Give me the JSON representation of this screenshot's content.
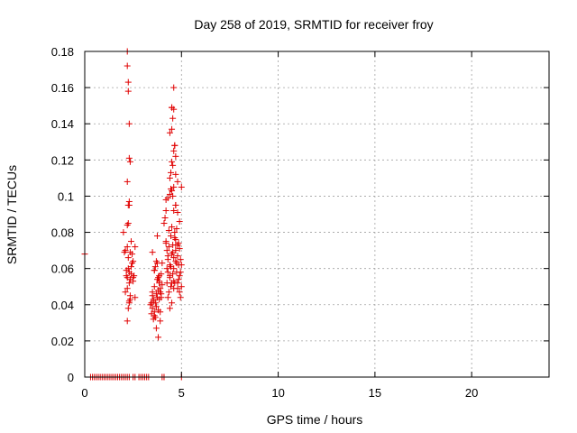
{
  "chart_data": {
    "type": "scatter",
    "title": "Day 258 of 2019, SRMTID for receiver froy",
    "xlabel": "GPS time / hours",
    "ylabel": "SRMTID / TECUs",
    "xlim": [
      0,
      24
    ],
    "ylim": [
      0,
      0.18
    ],
    "xticks": [
      0,
      5,
      10,
      15,
      20
    ],
    "yticks": [
      0,
      0.02,
      0.04,
      0.06,
      0.08,
      0.1,
      0.12,
      0.14,
      0.16,
      0.18
    ],
    "grid": true,
    "marker": "+",
    "color": "#e00000",
    "series": [
      {
        "x": [
          0.0,
          0.3,
          0.4,
          0.5,
          0.6,
          0.7,
          0.8,
          0.9,
          1.0,
          1.1,
          1.2,
          1.3,
          1.4,
          1.5,
          1.6,
          1.7,
          1.8,
          1.9,
          2.0,
          2.1,
          2.2,
          2.3,
          2.5,
          2.6,
          2.8,
          2.9,
          3.0,
          3.1,
          3.2,
          3.3,
          4.0,
          4.1,
          5.0,
          2.0,
          2.05,
          2.1,
          2.15,
          2.2,
          2.2,
          2.25,
          2.25,
          2.3,
          2.3,
          2.3,
          2.35,
          2.35,
          2.4,
          2.4,
          2.45,
          2.45,
          2.5,
          2.5,
          2.55,
          2.6,
          2.6,
          2.2,
          2.25,
          2.3,
          2.35,
          2.4,
          2.1,
          2.15,
          2.5,
          2.2,
          2.2,
          2.25,
          2.25,
          2.3,
          2.3,
          2.35,
          2.2,
          2.3,
          2.3,
          2.25,
          2.2,
          2.35,
          2.2,
          2.25,
          3.4,
          3.45,
          3.5,
          3.5,
          3.55,
          3.55,
          3.6,
          3.6,
          3.65,
          3.65,
          3.7,
          3.7,
          3.75,
          3.75,
          3.8,
          3.8,
          3.85,
          3.85,
          3.9,
          3.9,
          3.95,
          3.95,
          4.0,
          4.0,
          3.5,
          3.6,
          3.7,
          3.8,
          3.9,
          3.55,
          3.65,
          3.75,
          3.85,
          3.95,
          3.45,
          3.6,
          3.8,
          3.7,
          3.9,
          3.75,
          3.85,
          3.6,
          3.5,
          4.1,
          4.15,
          4.2,
          4.2,
          4.25,
          4.25,
          4.3,
          4.3,
          4.35,
          4.35,
          4.4,
          4.4,
          4.45,
          4.45,
          4.5,
          4.5,
          4.55,
          4.55,
          4.6,
          4.6,
          4.65,
          4.65,
          4.7,
          4.7,
          4.75,
          4.75,
          4.8,
          4.8,
          4.85,
          4.85,
          4.9,
          4.9,
          4.95,
          4.95,
          5.0,
          5.0,
          4.2,
          4.3,
          4.4,
          4.5,
          4.6,
          4.7,
          4.8,
          4.9,
          4.25,
          4.35,
          4.45,
          4.55,
          4.65,
          4.75,
          4.85,
          4.95,
          4.3,
          4.5,
          4.7,
          4.9,
          4.4,
          4.6,
          4.8,
          4.2,
          4.4,
          4.6,
          4.8,
          5.0,
          4.3,
          4.5,
          4.7,
          4.4,
          4.45,
          4.5,
          4.55,
          4.6,
          4.65,
          4.7,
          4.4,
          4.5,
          4.6,
          4.7,
          4.8,
          4.5,
          4.55,
          4.6,
          4.45,
          4.65,
          4.5,
          4.6,
          4.55,
          4.7
        ],
        "y": [
          0.068,
          0,
          0,
          0,
          0,
          0,
          0,
          0,
          0,
          0,
          0,
          0,
          0,
          0,
          0,
          0,
          0,
          0,
          0,
          0,
          0,
          0,
          0,
          0,
          0,
          0,
          0,
          0,
          0,
          0,
          0,
          0,
          0,
          0.08,
          0.069,
          0.07,
          0.056,
          0.055,
          0.072,
          0.06,
          0.066,
          0.042,
          0.052,
          0.058,
          0.045,
          0.054,
          0.057,
          0.075,
          0.063,
          0.068,
          0.055,
          0.064,
          0.056,
          0.044,
          0.072,
          0.049,
          0.038,
          0.041,
          0.043,
          0.061,
          0.047,
          0.059,
          0.053,
          0.18,
          0.172,
          0.163,
          0.158,
          0.14,
          0.121,
          0.119,
          0.108,
          0.097,
          0.095,
          0.085,
          0.084,
          0.069,
          0.031,
          0.095,
          0.04,
          0.035,
          0.045,
          0.038,
          0.032,
          0.042,
          0.036,
          0.05,
          0.041,
          0.033,
          0.046,
          0.039,
          0.054,
          0.044,
          0.048,
          0.037,
          0.043,
          0.052,
          0.047,
          0.036,
          0.057,
          0.044,
          0.063,
          0.051,
          0.069,
          0.059,
          0.064,
          0.055,
          0.049,
          0.043,
          0.061,
          0.078,
          0.056,
          0.046,
          0.041,
          0.034,
          0.022,
          0.027,
          0.031,
          0.063,
          0.053,
          0.059,
          0.047,
          0.085,
          0.088,
          0.075,
          0.092,
          0.07,
          0.06,
          0.065,
          0.058,
          0.072,
          0.081,
          0.055,
          0.062,
          0.078,
          0.05,
          0.068,
          0.083,
          0.073,
          0.057,
          0.06,
          0.066,
          0.08,
          0.052,
          0.07,
          0.076,
          0.063,
          0.058,
          0.067,
          0.073,
          0.054,
          0.062,
          0.071,
          0.047,
          0.058,
          0.044,
          0.05,
          0.062,
          0.098,
          0.099,
          0.101,
          0.103,
          0.105,
          0.095,
          0.091,
          0.086,
          0.052,
          0.047,
          0.061,
          0.069,
          0.077,
          0.082,
          0.074,
          0.065,
          0.044,
          0.041,
          0.064,
          0.056,
          0.038,
          0.049,
          0.049,
          0.074,
          0.056,
          0.053,
          0.052,
          0.105,
          0.067,
          0.052,
          0.073,
          0.11,
          0.113,
          0.119,
          0.117,
          0.125,
          0.128,
          0.122,
          0.135,
          0.149,
          0.16,
          0.112,
          0.108,
          0.137,
          0.143,
          0.148,
          0.104,
          0.128,
          0.149,
          0.092,
          0.1,
          0.095
        ]
      }
    ]
  }
}
